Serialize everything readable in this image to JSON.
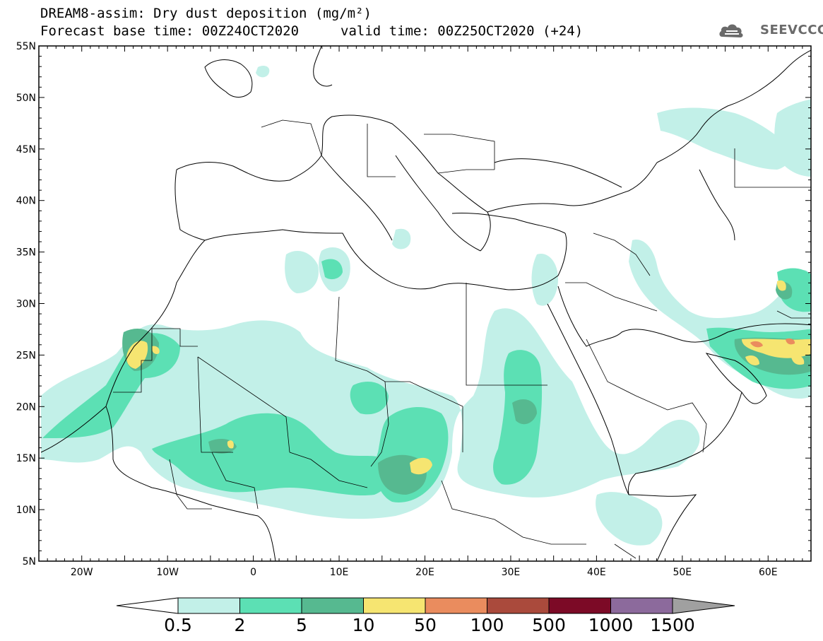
{
  "header": {
    "title": "DREAM8-assim: Dry dust deposition (mg/m²)",
    "base_time": "Forecast base time: 00Z24OCT2020",
    "valid_time": "valid time: 00Z25OCT2020 (+24)"
  },
  "logo": {
    "text": "SEEVCCC",
    "icon": "cloud-logo-icon",
    "color": "#6a6a6a"
  },
  "map_extent": {
    "lon": [
      -25,
      65
    ],
    "lat": [
      5,
      55
    ]
  },
  "lat_labels": [
    {
      "lat": 55,
      "text": "55N"
    },
    {
      "lat": 50,
      "text": "50N"
    },
    {
      "lat": 45,
      "text": "45N"
    },
    {
      "lat": 40,
      "text": "40N"
    },
    {
      "lat": 35,
      "text": "35N"
    },
    {
      "lat": 30,
      "text": "30N"
    },
    {
      "lat": 25,
      "text": "25N"
    },
    {
      "lat": 20,
      "text": "20N"
    },
    {
      "lat": 15,
      "text": "15N"
    },
    {
      "lat": 10,
      "text": "10N"
    },
    {
      "lat": 5,
      "text": "5N"
    }
  ],
  "lon_labels": [
    {
      "lon": -20,
      "text": "20W"
    },
    {
      "lon": -10,
      "text": "10W"
    },
    {
      "lon": 0,
      "text": "0"
    },
    {
      "lon": 10,
      "text": "10E"
    },
    {
      "lon": 20,
      "text": "20E"
    },
    {
      "lon": 30,
      "text": "30E"
    },
    {
      "lon": 40,
      "text": "40E"
    },
    {
      "lon": 50,
      "text": "50E"
    },
    {
      "lon": 60,
      "text": "60E"
    }
  ],
  "colorbar": {
    "colors": [
      "#c2f0e8",
      "#5ce0b4",
      "#56b990",
      "#f6e571",
      "#ea8c5e",
      "#aa4a3c",
      "#7c0a26",
      "#8c6a9c"
    ],
    "under_color": "#ffffff",
    "over_color": "#a0a0a0",
    "labels": [
      "0.5",
      "2",
      "5",
      "10",
      "50",
      "100",
      "500",
      "1000",
      "1500"
    ]
  },
  "colors": {
    "light": "#c2f0e8",
    "mid": "#5ce0b4",
    "dark": "#56b990",
    "yellow": "#f6e571",
    "orange": "#ea8c5e",
    "brown": "#aa4a3c"
  }
}
